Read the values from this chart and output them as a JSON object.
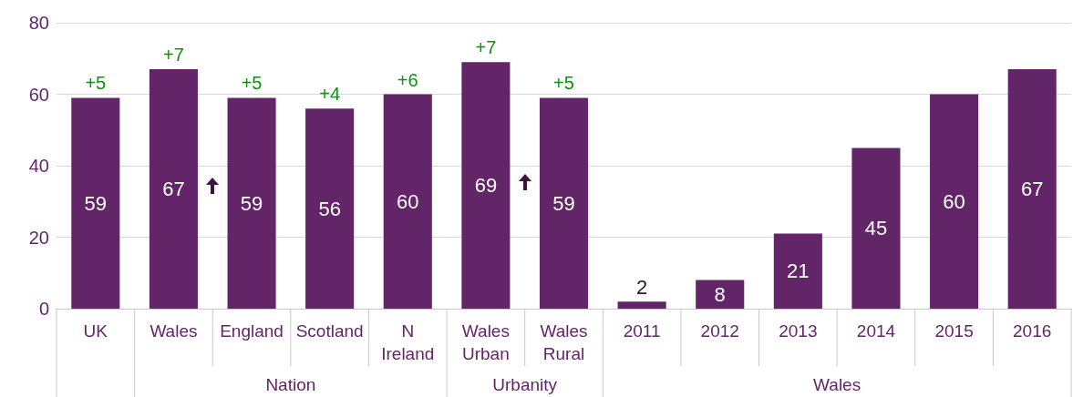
{
  "chart_data": {
    "type": "bar",
    "categories": [
      "UK",
      "Wales",
      "England",
      "Scotland",
      "N\nIreland",
      "Wales\nUrban",
      "Wales\nRural",
      "2011",
      "2012",
      "2013",
      "2014",
      "2015",
      "2016"
    ],
    "values": [
      59,
      67,
      59,
      56,
      60,
      69,
      59,
      2,
      8,
      21,
      45,
      60,
      67
    ],
    "color": "#622567",
    "ylim": [
      0,
      80
    ],
    "yticks": [
      0,
      20,
      40,
      60,
      80
    ],
    "grid": "y",
    "data_labels": true,
    "annotations": [
      {
        "text": "+5",
        "x": "UK",
        "y": 59
      },
      {
        "text": "+7",
        "x": "Wales",
        "y": 67
      },
      {
        "text": "+5",
        "x": "England",
        "y": 59
      },
      {
        "text": "+4",
        "x": "Scotland",
        "y": 56
      },
      {
        "text": "+6",
        "x": "N\nIreland",
        "y": 60
      },
      {
        "text": "+7",
        "x": "Wales\nUrban",
        "y": 69
      },
      {
        "text": "+5",
        "x": "Wales\nRural",
        "y": 59
      },
      "Nation",
      "Urbanity",
      "Wales"
    ]
  }
}
